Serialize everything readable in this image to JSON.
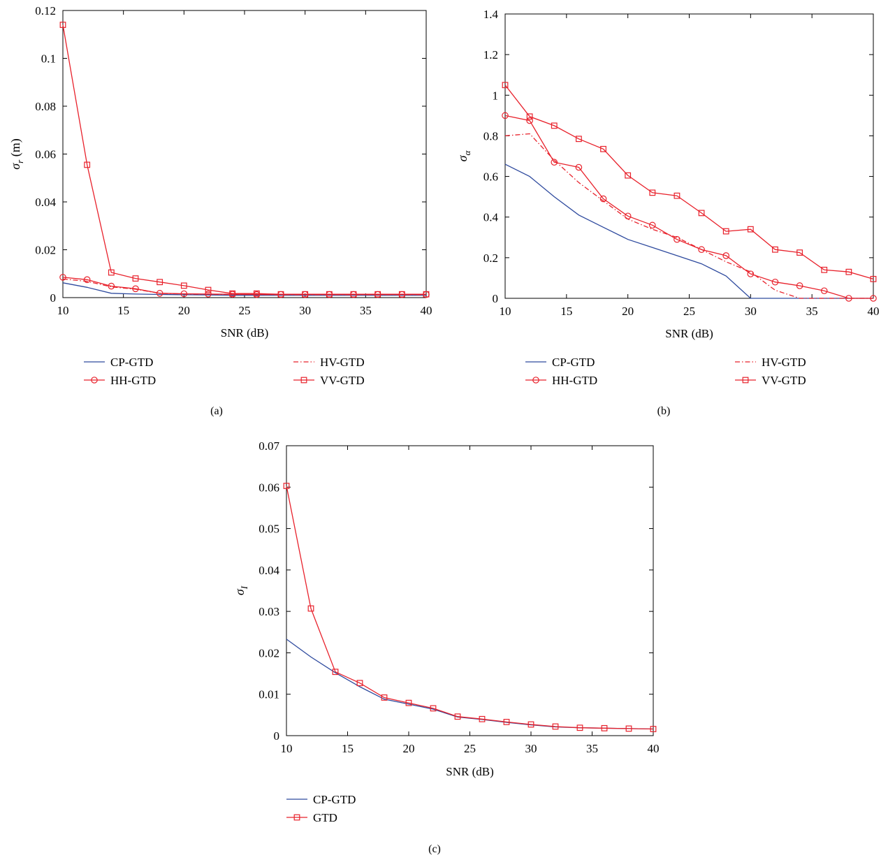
{
  "chart_data": [
    {
      "panel_label": "(a)",
      "type": "line",
      "xlabel": "SNR (dB)",
      "ylabel": "σ",
      "ylabel_sub": "r",
      "ylabel_suffix": " (m)",
      "xlim": [
        10,
        40
      ],
      "ylim": [
        0,
        0.12
      ],
      "xticks": [
        10,
        15,
        20,
        25,
        30,
        35,
        40
      ],
      "yticks": [
        0,
        0.02,
        0.04,
        0.06,
        0.08,
        0.1,
        0.12
      ],
      "grid": false,
      "legend_placement": "below",
      "x": [
        10,
        12,
        14,
        16,
        18,
        20,
        22,
        24,
        26,
        28,
        30,
        32,
        34,
        36,
        38,
        40
      ],
      "series": [
        {
          "name": "CP-GTD",
          "color": "#2e4a9e",
          "style": "solid",
          "marker": "none",
          "values": [
            0.0062,
            0.0043,
            0.0018,
            0.0015,
            0.0013,
            0.0012,
            0.0011,
            0.001,
            0.001,
            0.001,
            0.001,
            0.001,
            0.001,
            0.001,
            0.001,
            0.001
          ]
        },
        {
          "name": "HV-GTD",
          "color": "#e8212b",
          "style": "dashdot",
          "marker": "none",
          "values": [
            0.0078,
            0.0068,
            0.0045,
            0.0035,
            0.0018,
            0.0015,
            0.0014,
            0.0013,
            0.0013,
            0.0012,
            0.0012,
            0.0012,
            0.0012,
            0.0012,
            0.0012,
            0.0012
          ]
        },
        {
          "name": "HH-GTD",
          "color": "#e8212b",
          "style": "solid",
          "marker": "circle",
          "values": [
            0.0085,
            0.0075,
            0.0048,
            0.0037,
            0.0018,
            0.0016,
            0.0015,
            0.0014,
            0.0013,
            0.0013,
            0.0013,
            0.0013,
            0.0013,
            0.0013,
            0.0013,
            0.0013
          ]
        },
        {
          "name": "VV-GTD",
          "color": "#e8212b",
          "style": "solid",
          "marker": "square",
          "values": [
            0.114,
            0.0555,
            0.0105,
            0.008,
            0.0065,
            0.005,
            0.0032,
            0.0017,
            0.0017,
            0.0014,
            0.0014,
            0.0014,
            0.0014,
            0.0014,
            0.0014,
            0.0014
          ]
        }
      ],
      "legend_order": [
        "CP-GTD",
        "HV-GTD",
        "HH-GTD",
        "VV-GTD"
      ]
    },
    {
      "panel_label": "(b)",
      "type": "line",
      "xlabel": "SNR (dB)",
      "ylabel": "σ",
      "ylabel_sub": "α",
      "ylabel_suffix": "",
      "xlim": [
        10,
        40
      ],
      "ylim": [
        0,
        1.4
      ],
      "xticks": [
        10,
        15,
        20,
        25,
        30,
        35,
        40
      ],
      "yticks": [
        0,
        0.2,
        0.4,
        0.6,
        0.8,
        1,
        1.2,
        1.4
      ],
      "grid": false,
      "legend_placement": "below",
      "x": [
        10,
        12,
        14,
        16,
        18,
        20,
        22,
        24,
        26,
        28,
        30,
        32,
        34,
        36,
        38,
        40
      ],
      "series": [
        {
          "name": "CP-GTD",
          "color": "#2e4a9e",
          "style": "solid",
          "marker": "none",
          "values": [
            0.66,
            0.6,
            0.5,
            0.41,
            0.35,
            0.29,
            0.25,
            0.21,
            0.17,
            0.11,
            0.0,
            0.0,
            0.0,
            0.0,
            0.0,
            0.0
          ]
        },
        {
          "name": "HV-GTD",
          "color": "#e8212b",
          "style": "dashdot",
          "marker": "none",
          "values": [
            0.8,
            0.81,
            0.68,
            0.57,
            0.48,
            0.39,
            0.34,
            0.3,
            0.24,
            0.18,
            0.13,
            0.04,
            0.0,
            0.0,
            0.0,
            0.0
          ]
        },
        {
          "name": "HH-GTD",
          "color": "#e8212b",
          "style": "solid",
          "marker": "circle",
          "values": [
            0.9,
            0.875,
            0.67,
            0.645,
            0.49,
            0.405,
            0.36,
            0.29,
            0.24,
            0.21,
            0.12,
            0.08,
            0.062,
            0.037,
            0.0,
            0.0
          ]
        },
        {
          "name": "VV-GTD",
          "color": "#e8212b",
          "style": "solid",
          "marker": "square",
          "values": [
            1.05,
            0.895,
            0.85,
            0.785,
            0.735,
            0.605,
            0.52,
            0.505,
            0.42,
            0.33,
            0.34,
            0.24,
            0.225,
            0.14,
            0.13,
            0.095
          ]
        }
      ],
      "legend_order": [
        "CP-GTD",
        "HV-GTD",
        "HH-GTD",
        "VV-GTD"
      ]
    },
    {
      "panel_label": "(c)",
      "type": "line",
      "xlabel": "SNR (dB)",
      "ylabel": "σ",
      "ylabel_sub": "I",
      "ylabel_suffix": "",
      "xlim": [
        10,
        40
      ],
      "ylim": [
        0,
        0.07
      ],
      "xticks": [
        10,
        15,
        20,
        25,
        30,
        35,
        40
      ],
      "yticks": [
        0,
        0.01,
        0.02,
        0.03,
        0.04,
        0.05,
        0.06,
        0.07
      ],
      "grid": false,
      "legend_placement": "below",
      "x": [
        10,
        12,
        14,
        16,
        18,
        20,
        22,
        24,
        26,
        28,
        30,
        32,
        34,
        36,
        38,
        40
      ],
      "series": [
        {
          "name": "CP-GTD",
          "color": "#2e4a9e",
          "style": "solid",
          "marker": "none",
          "values": [
            0.0233,
            0.019,
            0.0152,
            0.0118,
            0.0088,
            0.0076,
            0.0064,
            0.0045,
            0.0039,
            0.0032,
            0.0026,
            0.0021,
            0.0019,
            0.0018,
            0.0017,
            0.0016
          ]
        },
        {
          "name": "GTD",
          "color": "#e8212b",
          "style": "solid",
          "marker": "square",
          "values": [
            0.0603,
            0.0307,
            0.0154,
            0.0127,
            0.0092,
            0.0079,
            0.0066,
            0.0046,
            0.004,
            0.0033,
            0.0027,
            0.0022,
            0.0019,
            0.0018,
            0.0017,
            0.0016
          ]
        }
      ],
      "legend_order": [
        "CP-GTD",
        "GTD"
      ]
    }
  ]
}
